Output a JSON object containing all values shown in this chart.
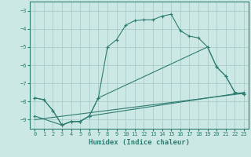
{
  "xlabel": "Humidex (Indice chaleur)",
  "background_color": "#cce8e4",
  "line_color": "#2e7d72",
  "grid_color": "#aaccca",
  "xlim": [
    -0.5,
    23.5
  ],
  "ylim": [
    -9.5,
    -2.5
  ],
  "yticks": [
    -9,
    -8,
    -7,
    -6,
    -5,
    -4,
    -3
  ],
  "xticks": [
    0,
    1,
    2,
    3,
    4,
    5,
    6,
    7,
    8,
    9,
    10,
    11,
    12,
    13,
    14,
    15,
    16,
    17,
    18,
    19,
    20,
    21,
    22,
    23
  ],
  "curve1_x": [
    0,
    1,
    2,
    3,
    4,
    5,
    6,
    7,
    8,
    9,
    10,
    11,
    12,
    13,
    14,
    15,
    16,
    17,
    18,
    19,
    20,
    21,
    22,
    23
  ],
  "curve1_y": [
    -7.8,
    -7.9,
    -8.5,
    -9.3,
    -9.1,
    -9.1,
    -8.8,
    -7.8,
    -5.0,
    -4.6,
    -3.8,
    -3.55,
    -3.5,
    -3.5,
    -3.3,
    -3.2,
    -4.1,
    -4.4,
    -4.5,
    -5.0,
    -6.1,
    -6.6,
    -7.5,
    -7.6
  ],
  "curve2_x": [
    0,
    1,
    2,
    3,
    4,
    5,
    6,
    7,
    19,
    20,
    21,
    22,
    23
  ],
  "curve2_y": [
    -7.8,
    -7.9,
    -8.5,
    -9.3,
    -9.1,
    -9.1,
    -8.8,
    -7.8,
    -5.0,
    -6.1,
    -6.6,
    -7.5,
    -7.6
  ],
  "curve3_x": [
    0,
    3,
    4,
    5,
    6,
    23
  ],
  "curve3_y": [
    -8.8,
    -9.3,
    -9.1,
    -9.1,
    -8.8,
    -7.5
  ],
  "curve4_x": [
    0,
    23
  ],
  "curve4_y": [
    -9.0,
    -7.55
  ]
}
